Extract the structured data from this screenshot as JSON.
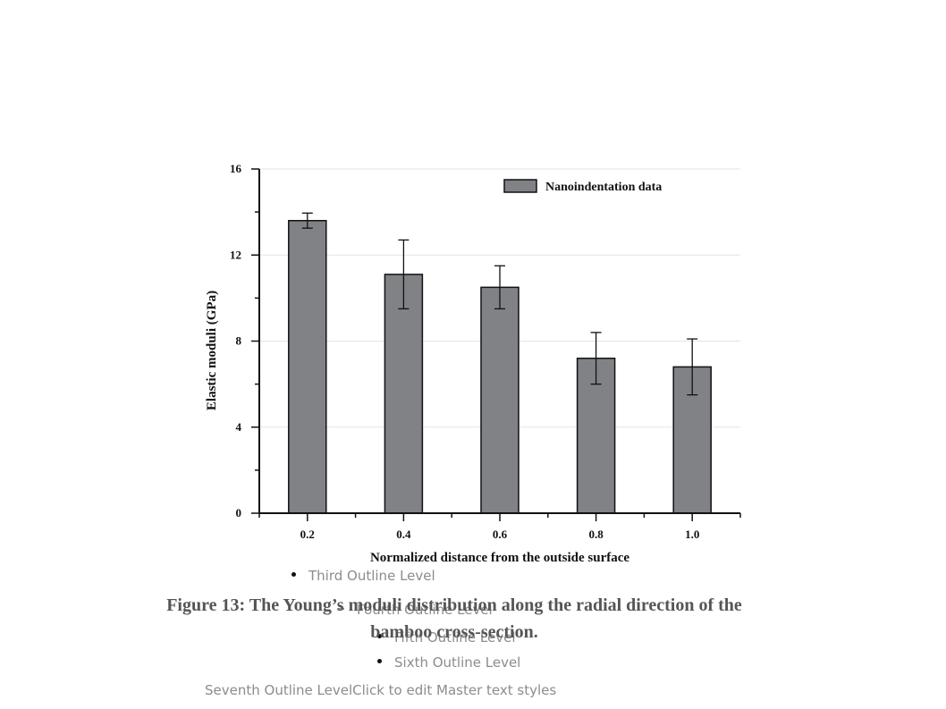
{
  "chart_data": {
    "type": "bar",
    "categories": [
      "0.2",
      "0.4",
      "0.6",
      "0.8",
      "1.0"
    ],
    "series": [
      {
        "name": "Nanoindentation data",
        "values": [
          13.6,
          11.1,
          10.5,
          7.2,
          6.8
        ],
        "error": [
          0.35,
          1.6,
          1.0,
          1.2,
          1.3
        ],
        "color": "#808285"
      }
    ],
    "xlabel": "Normalized distance from the outside surface",
    "ylabel": "Elastic moduli (GPa)",
    "ylim": [
      0,
      16
    ],
    "yticks": [
      "0",
      "4",
      "8",
      "12",
      "16"
    ],
    "grid": true,
    "legend_position": "top-right"
  },
  "caption": {
    "line1": "Figure 13:  The Young’s moduli distribution along the radial direction of the",
    "line2": "bamboo cross-section."
  },
  "outline": {
    "third": "Third Outline Level",
    "fourth": "Fourth Outline Level",
    "fifth": "Fifth Outline Level",
    "sixth": "Sixth Outline Level",
    "seventh": "Seventh Outline LevelClick to edit Master text styles"
  }
}
